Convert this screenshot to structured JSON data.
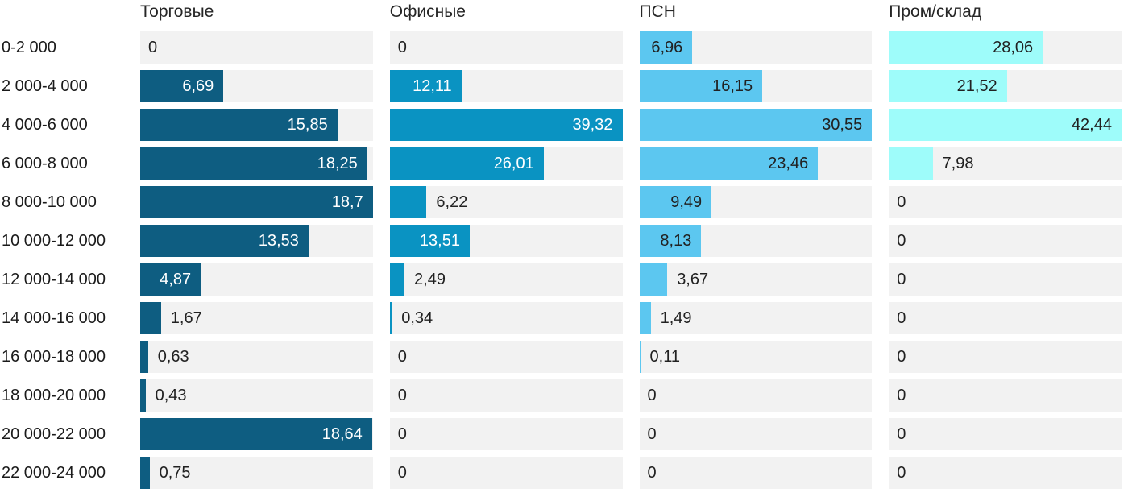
{
  "chart_data": {
    "type": "bar",
    "orientation": "horizontal",
    "layout": "small-multiples-4-columns",
    "grid": false,
    "legend_position": "column-headers-top",
    "per_column_scale": true,
    "column_max": [
      18.7,
      39.32,
      30.55,
      42.44
    ],
    "track_color": "#f2f2f2",
    "text_color": "#212121",
    "zero_label": "0",
    "value_label_decimal_separator": ",",
    "categories": [
      "0-2 000",
      "2 000-4 000",
      "4 000-6 000",
      "6 000-8 000",
      "8 000-10 000",
      "10 000-12 000",
      "12 000-14 000",
      "14 000-16 000",
      "16 000-18 000",
      "18 000-20 000",
      "20 000-22 000",
      "22 000-24 000"
    ],
    "series": [
      {
        "name": "Торговые",
        "color": "#0e5d81",
        "label_color_inside": "#ffffff",
        "values": [
          0,
          6.69,
          15.85,
          18.25,
          18.7,
          13.53,
          4.87,
          1.67,
          0.63,
          0.43,
          18.64,
          0.75
        ]
      },
      {
        "name": "Офисные",
        "color": "#0a93c2",
        "label_color_inside": "#ffffff",
        "values": [
          0,
          12.11,
          39.32,
          26.01,
          6.22,
          13.51,
          2.49,
          0.34,
          0,
          0,
          0,
          0
        ]
      },
      {
        "name": "ПСН",
        "color": "#5cc7f0",
        "label_color_inside": "#212121",
        "values": [
          6.96,
          16.15,
          30.55,
          23.46,
          9.49,
          8.13,
          3.67,
          1.49,
          0.11,
          0,
          0,
          0
        ]
      },
      {
        "name": "Пром/склад",
        "color": "#9efcfa",
        "label_color_inside": "#212121",
        "values": [
          28.06,
          21.52,
          42.44,
          7.98,
          0,
          0,
          0,
          0,
          0,
          0,
          0,
          0
        ]
      }
    ]
  }
}
